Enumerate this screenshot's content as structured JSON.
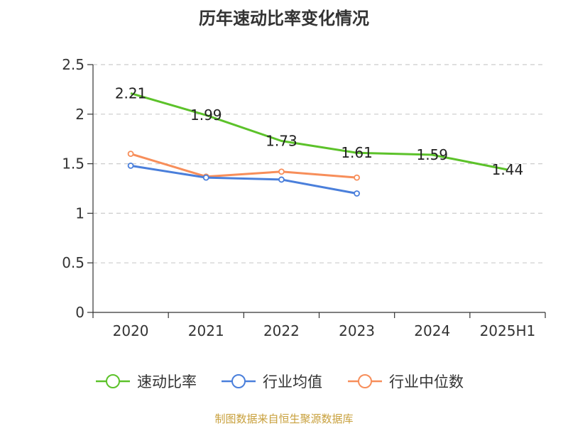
{
  "source": "制图数据来自恒生聚源数据库",
  "chart_data": {
    "type": "line",
    "title": "历年速动比率变化情况",
    "xlabel": "",
    "ylabel": "",
    "categories": [
      "2020",
      "2021",
      "2022",
      "2023",
      "2024",
      "2025H1"
    ],
    "ylim": [
      0,
      2.5
    ],
    "yticks": [
      "0",
      "0.5",
      "1",
      "1.5",
      "2",
      "2.5"
    ],
    "grid": true,
    "legend_position": "bottom",
    "series": [
      {
        "name": "速动比率",
        "color": "#5cc22a",
        "values": [
          2.21,
          1.99,
          1.73,
          1.61,
          1.59,
          1.44
        ],
        "labels": [
          "2.21",
          "1.99",
          "1.73",
          "1.61",
          "1.59",
          "1.44"
        ]
      },
      {
        "name": "行业均值",
        "color": "#4a7fdb",
        "values": [
          1.48,
          1.36,
          1.34,
          1.2,
          null,
          null
        ]
      },
      {
        "name": "行业中位数",
        "color": "#f78e5a",
        "values": [
          1.6,
          1.37,
          1.42,
          1.36,
          null,
          null
        ]
      }
    ]
  }
}
